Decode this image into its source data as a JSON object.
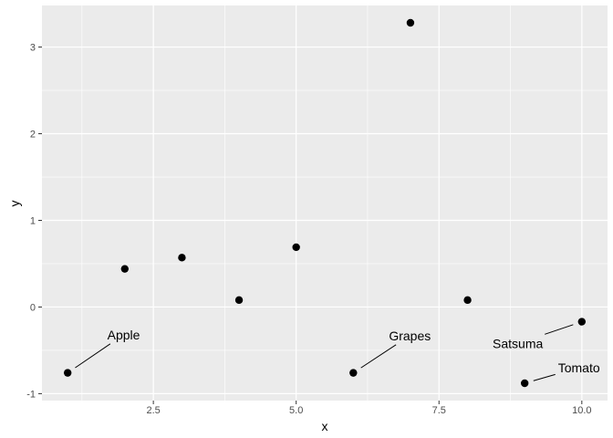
{
  "chart_data": {
    "type": "scatter",
    "xlabel": "x",
    "ylabel": "y",
    "xlim": [
      0.55,
      10.45
    ],
    "ylim": [
      -1.08,
      3.48
    ],
    "x_ticks": [
      2.5,
      5.0,
      7.5,
      10.0
    ],
    "x_tick_labels": [
      "2.5",
      "5.0",
      "7.5",
      "10.0"
    ],
    "y_ticks": [
      -1,
      0,
      1,
      2,
      3
    ],
    "y_tick_labels": [
      "-1",
      "0",
      "1",
      "2",
      "3"
    ],
    "grid": true,
    "points": [
      {
        "x": 1,
        "y": -0.76
      },
      {
        "x": 2,
        "y": 0.44
      },
      {
        "x": 3,
        "y": 0.57
      },
      {
        "x": 4,
        "y": 0.08
      },
      {
        "x": 5,
        "y": 0.69
      },
      {
        "x": 6,
        "y": -0.76
      },
      {
        "x": 7,
        "y": 3.28
      },
      {
        "x": 8,
        "y": 0.08
      },
      {
        "x": 9,
        "y": -0.88
      },
      {
        "x": 10,
        "y": -0.17
      }
    ],
    "annotations": [
      {
        "text": "Apple",
        "point_x": 1,
        "point_y": -0.76,
        "label_x": 1.98,
        "label_y": -0.32
      },
      {
        "text": "Grapes",
        "point_x": 6,
        "point_y": -0.76,
        "label_x": 6.99,
        "label_y": -0.33
      },
      {
        "text": "Satsuma",
        "point_x": 10,
        "point_y": -0.17,
        "label_x": 8.88,
        "label_y": -0.42
      },
      {
        "text": "Tomato",
        "point_x": 9,
        "point_y": -0.88,
        "label_x": 9.95,
        "label_y": -0.7
      }
    ],
    "colors": {
      "panel": "#ebebeb",
      "grid_major": "#ffffff",
      "point": "#000000",
      "tick_text": "#4d4d4d",
      "tick_mark": "#333333"
    }
  }
}
